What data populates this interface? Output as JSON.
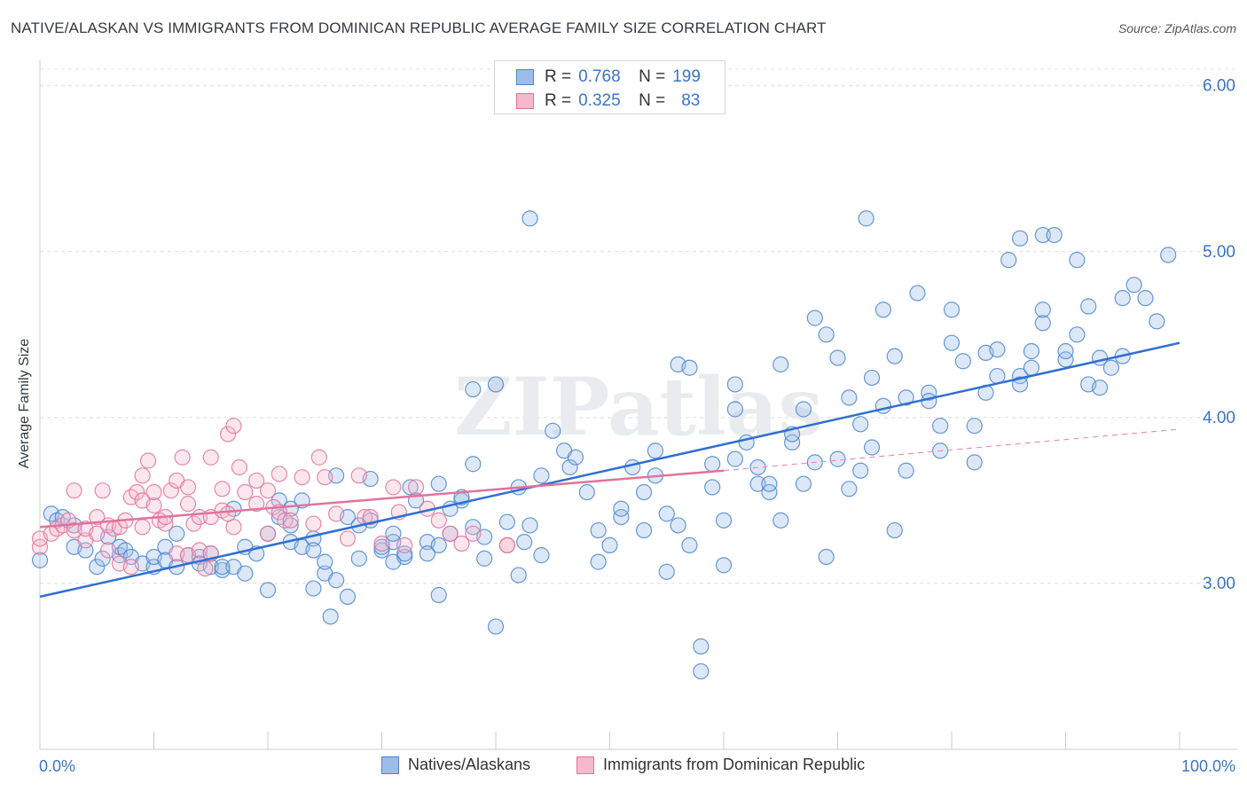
{
  "title": "NATIVE/ALASKAN VS IMMIGRANTS FROM DOMINICAN REPUBLIC AVERAGE FAMILY SIZE CORRELATION CHART",
  "source": "Source: ZipAtlas.com",
  "watermark": "ZIPatlas",
  "legend": {
    "r_label": "R =",
    "n_label": "N =",
    "rows": [
      {
        "r": "0.768",
        "n": "199",
        "color": "#9bbde8",
        "stroke": "#4f86cf"
      },
      {
        "r": "0.325",
        "n": "83",
        "color": "#f6b8cb",
        "stroke": "#e0739b"
      }
    ]
  },
  "bottom_legend": [
    {
      "label": "Natives/Alaskans"
    },
    {
      "label": "Immigrants from Dominican Republic"
    }
  ],
  "chart_data": {
    "type": "scatter",
    "xlabel": "",
    "ylabel": "Average Family Size",
    "x_tick_labels": [
      "0.0%",
      "100.0%"
    ],
    "xlim": [
      0,
      100
    ],
    "ylim": [
      2.0,
      6.1
    ],
    "y_ticks": [
      3.0,
      4.0,
      5.0,
      6.0
    ],
    "y_tick_labels": [
      "3.00",
      "4.00",
      "5.00",
      "6.00"
    ],
    "grid": true,
    "colors": {
      "natives": "#4f86cf",
      "natives_fill": "#9bbde8",
      "dominican": "#e0739b",
      "dominican_fill": "#f6b8cb",
      "axis_label": "#3a75c4"
    },
    "series": [
      {
        "name": "Natives/Alaskans",
        "trend": {
          "x": [
            0,
            100
          ],
          "y": [
            2.92,
            4.45
          ]
        },
        "points": [
          [
            0,
            3.14
          ],
          [
            1,
            3.42
          ],
          [
            1.5,
            3.38
          ],
          [
            2,
            3.4
          ],
          [
            3,
            3.35
          ],
          [
            3,
            3.22
          ],
          [
            4,
            3.2
          ],
          [
            5,
            3.1
          ],
          [
            5.5,
            3.15
          ],
          [
            6,
            3.28
          ],
          [
            7,
            3.17
          ],
          [
            7,
            3.22
          ],
          [
            7.5,
            3.2
          ],
          [
            8,
            3.16
          ],
          [
            9,
            3.12
          ],
          [
            10,
            3.1
          ],
          [
            10,
            3.16
          ],
          [
            11,
            3.22
          ],
          [
            11,
            3.14
          ],
          [
            12,
            3.3
          ],
          [
            12,
            3.1
          ],
          [
            13,
            3.17
          ],
          [
            14,
            3.16
          ],
          [
            14,
            3.12
          ],
          [
            15,
            3.1
          ],
          [
            15,
            3.18
          ],
          [
            16,
            3.08
          ],
          [
            16,
            3.1
          ],
          [
            17,
            3.45
          ],
          [
            17,
            3.1
          ],
          [
            18,
            3.22
          ],
          [
            18,
            3.06
          ],
          [
            19,
            3.18
          ],
          [
            20,
            2.96
          ],
          [
            20,
            3.3
          ],
          [
            21,
            3.5
          ],
          [
            21,
            3.4
          ],
          [
            22,
            3.45
          ],
          [
            22,
            3.35
          ],
          [
            22,
            3.25
          ],
          [
            23,
            3.5
          ],
          [
            23,
            3.22
          ],
          [
            24,
            2.97
          ],
          [
            24,
            3.27
          ],
          [
            24,
            3.2
          ],
          [
            25,
            3.06
          ],
          [
            25,
            3.13
          ],
          [
            25.5,
            2.8
          ],
          [
            26,
            3.65
          ],
          [
            26,
            3.02
          ],
          [
            27,
            2.92
          ],
          [
            27,
            3.4
          ],
          [
            28,
            3.15
          ],
          [
            28,
            3.35
          ],
          [
            29,
            3.38
          ],
          [
            29,
            3.63
          ],
          [
            30,
            3.2
          ],
          [
            30,
            3.22
          ],
          [
            31,
            3.25
          ],
          [
            31,
            3.13
          ],
          [
            31,
            3.3
          ],
          [
            32,
            3.16
          ],
          [
            32,
            3.18
          ],
          [
            32.5,
            3.58
          ],
          [
            33,
            3.5
          ],
          [
            34,
            3.25
          ],
          [
            34,
            3.18
          ],
          [
            35,
            3.23
          ],
          [
            35,
            2.93
          ],
          [
            35,
            3.6
          ],
          [
            36,
            3.45
          ],
          [
            36,
            3.3
          ],
          [
            37,
            3.5
          ],
          [
            37,
            3.52
          ],
          [
            38,
            3.34
          ],
          [
            38,
            4.17
          ],
          [
            38,
            3.72
          ],
          [
            39,
            3.28
          ],
          [
            39,
            3.15
          ],
          [
            40,
            2.74
          ],
          [
            40,
            4.2
          ],
          [
            41,
            3.37
          ],
          [
            42,
            3.58
          ],
          [
            42,
            3.05
          ],
          [
            42.5,
            3.25
          ],
          [
            43,
            5.2
          ],
          [
            43,
            3.35
          ],
          [
            44,
            3.65
          ],
          [
            44,
            3.17
          ],
          [
            45,
            3.92
          ],
          [
            46,
            3.8
          ],
          [
            46.5,
            3.7
          ],
          [
            47,
            3.76
          ],
          [
            48,
            3.55
          ],
          [
            49,
            3.32
          ],
          [
            49,
            3.13
          ],
          [
            50,
            3.23
          ],
          [
            51,
            3.4
          ],
          [
            51,
            3.45
          ],
          [
            52,
            3.7
          ],
          [
            53,
            3.55
          ],
          [
            53,
            3.32
          ],
          [
            54,
            3.8
          ],
          [
            54,
            3.65
          ],
          [
            55,
            3.42
          ],
          [
            55,
            3.07
          ],
          [
            56,
            4.32
          ],
          [
            56,
            3.35
          ],
          [
            57,
            3.23
          ],
          [
            57,
            4.3
          ],
          [
            58,
            2.62
          ],
          [
            58,
            2.47
          ],
          [
            59,
            3.72
          ],
          [
            59,
            3.58
          ],
          [
            60,
            3.38
          ],
          [
            60,
            3.11
          ],
          [
            61,
            3.75
          ],
          [
            61,
            4.2
          ],
          [
            61,
            4.05
          ],
          [
            62,
            3.85
          ],
          [
            63,
            3.6
          ],
          [
            63,
            3.7
          ],
          [
            64,
            3.55
          ],
          [
            64,
            3.6
          ],
          [
            65,
            3.38
          ],
          [
            65,
            4.32
          ],
          [
            66,
            3.85
          ],
          [
            66,
            3.9
          ],
          [
            67,
            3.6
          ],
          [
            67,
            4.05
          ],
          [
            68,
            3.73
          ],
          [
            68,
            4.6
          ],
          [
            69,
            3.16
          ],
          [
            69,
            4.5
          ],
          [
            70,
            3.75
          ],
          [
            70,
            4.36
          ],
          [
            71,
            3.57
          ],
          [
            71,
            4.12
          ],
          [
            72,
            3.68
          ],
          [
            72,
            3.96
          ],
          [
            73,
            4.24
          ],
          [
            73,
            3.82
          ],
          [
            74,
            4.65
          ],
          [
            74,
            4.07
          ],
          [
            75,
            4.37
          ],
          [
            75,
            3.32
          ],
          [
            76,
            4.12
          ],
          [
            76,
            3.68
          ],
          [
            77,
            4.75
          ],
          [
            78,
            4.15
          ],
          [
            78,
            4.1
          ],
          [
            79,
            3.95
          ],
          [
            79,
            3.8
          ],
          [
            80,
            4.65
          ],
          [
            80,
            4.45
          ],
          [
            81,
            4.34
          ],
          [
            82,
            3.95
          ],
          [
            82,
            3.73
          ],
          [
            83,
            4.39
          ],
          [
            83,
            4.15
          ],
          [
            84,
            4.25
          ],
          [
            84,
            4.41
          ],
          [
            85,
            4.95
          ],
          [
            86,
            4.25
          ],
          [
            86,
            4.2
          ],
          [
            86,
            5.08
          ],
          [
            87,
            4.3
          ],
          [
            87,
            4.4
          ],
          [
            88,
            5.1
          ],
          [
            88,
            4.57
          ],
          [
            88,
            4.65
          ],
          [
            89,
            5.1
          ],
          [
            90,
            4.35
          ],
          [
            90,
            4.4
          ],
          [
            91,
            4.95
          ],
          [
            91,
            4.5
          ],
          [
            92,
            4.67
          ],
          [
            92,
            4.2
          ],
          [
            93,
            4.36
          ],
          [
            93,
            4.18
          ],
          [
            94,
            4.3
          ],
          [
            95,
            4.72
          ],
          [
            95,
            4.37
          ],
          [
            96,
            4.8
          ],
          [
            97,
            4.72
          ],
          [
            98,
            4.58
          ],
          [
            99,
            4.98
          ],
          [
            72.5,
            5.2
          ]
        ]
      },
      {
        "name": "Immigrants from Dominican Republic",
        "trend": {
          "x": [
            0,
            60
          ],
          "y": [
            3.34,
            3.68
          ]
        },
        "trend_dashed": {
          "x": [
            60,
            100
          ],
          "y": [
            3.68,
            3.93
          ]
        },
        "points": [
          [
            0,
            3.22
          ],
          [
            0,
            3.27
          ],
          [
            1,
            3.3
          ],
          [
            1.5,
            3.33
          ],
          [
            2,
            3.35
          ],
          [
            2.5,
            3.38
          ],
          [
            3,
            3.32
          ],
          [
            3,
            3.56
          ],
          [
            4,
            3.26
          ],
          [
            4,
            3.33
          ],
          [
            5,
            3.3
          ],
          [
            5,
            3.4
          ],
          [
            5.5,
            3.56
          ],
          [
            6,
            3.2
          ],
          [
            6,
            3.35
          ],
          [
            6.5,
            3.33
          ],
          [
            7,
            3.12
          ],
          [
            7,
            3.34
          ],
          [
            7.5,
            3.38
          ],
          [
            8,
            3.1
          ],
          [
            8,
            3.52
          ],
          [
            8.5,
            3.55
          ],
          [
            9,
            3.34
          ],
          [
            9,
            3.5
          ],
          [
            9,
            3.65
          ],
          [
            9.5,
            3.74
          ],
          [
            10,
            3.47
          ],
          [
            10,
            3.55
          ],
          [
            10.5,
            3.38
          ],
          [
            11,
            3.36
          ],
          [
            11,
            3.4
          ],
          [
            11.5,
            3.56
          ],
          [
            12,
            3.18
          ],
          [
            12,
            3.62
          ],
          [
            12.5,
            3.76
          ],
          [
            13,
            3.17
          ],
          [
            13,
            3.58
          ],
          [
            13,
            3.48
          ],
          [
            13.5,
            3.36
          ],
          [
            14,
            3.2
          ],
          [
            14,
            3.4
          ],
          [
            14.5,
            3.09
          ],
          [
            15,
            3.18
          ],
          [
            15,
            3.4
          ],
          [
            15,
            3.76
          ],
          [
            16,
            3.57
          ],
          [
            16,
            3.44
          ],
          [
            16.5,
            3.42
          ],
          [
            16.5,
            3.9
          ],
          [
            17,
            3.95
          ],
          [
            17,
            3.34
          ],
          [
            17.5,
            3.7
          ],
          [
            18,
            3.55
          ],
          [
            19,
            3.48
          ],
          [
            19,
            3.62
          ],
          [
            20,
            3.3
          ],
          [
            20,
            3.56
          ],
          [
            20.5,
            3.46
          ],
          [
            21,
            3.43
          ],
          [
            21,
            3.66
          ],
          [
            21.5,
            3.38
          ],
          [
            22,
            3.38
          ],
          [
            23,
            3.64
          ],
          [
            24,
            3.36
          ],
          [
            24.5,
            3.76
          ],
          [
            25,
            3.64
          ],
          [
            26,
            3.42
          ],
          [
            27,
            3.27
          ],
          [
            28,
            3.65
          ],
          [
            28.5,
            3.4
          ],
          [
            29,
            3.4
          ],
          [
            30,
            3.24
          ],
          [
            31,
            3.58
          ],
          [
            31.5,
            3.43
          ],
          [
            32,
            3.23
          ],
          [
            33,
            3.58
          ],
          [
            34,
            3.45
          ],
          [
            35,
            3.38
          ],
          [
            36,
            3.3
          ],
          [
            37,
            3.24
          ],
          [
            38,
            3.3
          ],
          [
            41,
            3.23
          ],
          [
            41,
            3.23
          ]
        ]
      }
    ]
  }
}
